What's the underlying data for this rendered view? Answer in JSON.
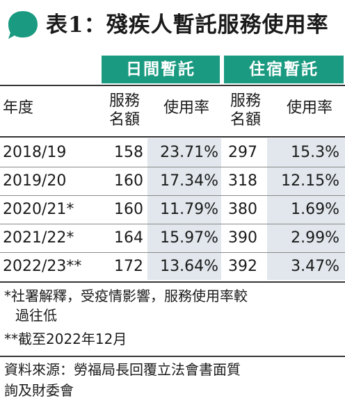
{
  "title": "表1：殘疾人暫託服務使用率",
  "colors": {
    "accent": "#1a9a80",
    "shade": "#e1e7ec"
  },
  "groups": [
    "日間暫託",
    "住宿暫託"
  ],
  "columns": {
    "year": "年度",
    "day_places": "服務名額",
    "day_rate": "使用率",
    "res_places": "服務名額",
    "res_rate": "使用率"
  },
  "rows": [
    {
      "year": "2018/19",
      "day_places": "158",
      "day_rate": "23.71%",
      "res_places": "297",
      "res_rate": "15.3%"
    },
    {
      "year": "2019/20",
      "day_places": "160",
      "day_rate": "17.34%",
      "res_places": "318",
      "res_rate": "12.15%"
    },
    {
      "year": "2020/21*",
      "day_places": "160",
      "day_rate": "11.79%",
      "res_places": "380",
      "res_rate": "1.69%"
    },
    {
      "year": "2021/22*",
      "day_places": "164",
      "day_rate": "15.97%",
      "res_places": "390",
      "res_rate": "2.99%"
    },
    {
      "year": "2022/23**",
      "day_places": "172",
      "day_rate": "13.64%",
      "res_places": "392",
      "res_rate": "3.47%"
    }
  ],
  "notes": [
    "*社署解釋，受疫情影響，服務使用率較",
    "過往低",
    "**截至2022年12月"
  ],
  "source": [
    "資料來源：勞福局長回覆立法會書面質",
    "詢及財委會"
  ]
}
